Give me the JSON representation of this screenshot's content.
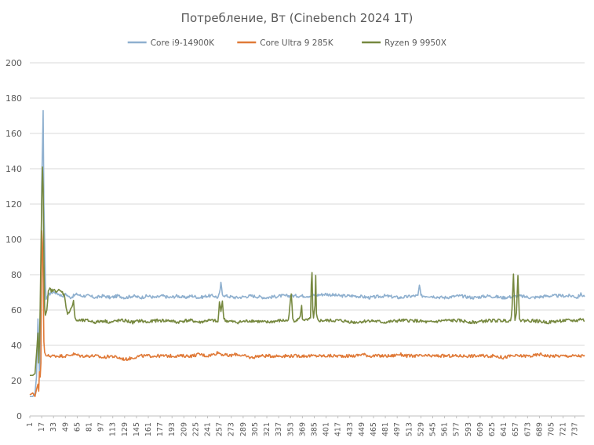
{
  "chart_data": {
    "type": "line",
    "title": "Потребление, Вт (Cinebench 2024 1T)",
    "xlabel": "",
    "ylabel": "",
    "ylim": [
      0,
      200
    ],
    "yticks": [
      0,
      20,
      40,
      60,
      80,
      100,
      120,
      140,
      160,
      180,
      200
    ],
    "xlim": [
      1,
      750
    ],
    "xticks": [
      1,
      17,
      33,
      49,
      65,
      81,
      97,
      113,
      129,
      145,
      161,
      177,
      193,
      209,
      225,
      241,
      257,
      273,
      289,
      305,
      321,
      337,
      353,
      369,
      385,
      401,
      417,
      433,
      449,
      465,
      481,
      497,
      513,
      529,
      545,
      561,
      577,
      593,
      609,
      625,
      641,
      657,
      673,
      689,
      705,
      721,
      737
    ],
    "grid": "horizontal",
    "legend_position": "top",
    "series": [
      {
        "name": "Core i9-14900K",
        "color": "#8fb0cf",
        "points": [
          [
            1,
            11
          ],
          [
            5,
            11
          ],
          [
            8,
            13
          ],
          [
            10,
            22
          ],
          [
            12,
            55
          ],
          [
            13,
            40
          ],
          [
            14,
            22
          ],
          [
            15,
            28
          ],
          [
            16,
            60
          ],
          [
            17,
            130
          ],
          [
            18,
            150
          ],
          [
            19,
            173
          ],
          [
            20,
            120
          ],
          [
            21,
            100
          ],
          [
            22,
            75
          ],
          [
            23,
            66
          ],
          [
            25,
            68
          ],
          [
            30,
            70
          ],
          [
            35,
            70
          ],
          [
            40,
            69
          ],
          [
            45,
            68
          ],
          [
            50,
            69
          ],
          [
            55,
            67
          ],
          [
            60,
            68
          ],
          [
            65,
            69
          ],
          [
            70,
            68
          ],
          [
            80,
            68
          ],
          [
            90,
            67
          ],
          [
            100,
            68
          ],
          [
            110,
            67
          ],
          [
            120,
            68
          ],
          [
            130,
            67
          ],
          [
            140,
            68
          ],
          [
            150,
            67
          ],
          [
            160,
            68
          ],
          [
            170,
            67
          ],
          [
            180,
            68
          ],
          [
            190,
            67
          ],
          [
            200,
            68
          ],
          [
            210,
            67
          ],
          [
            220,
            68
          ],
          [
            230,
            67
          ],
          [
            240,
            68
          ],
          [
            250,
            68
          ],
          [
            255,
            67
          ],
          [
            257,
            69
          ],
          [
            259,
            75
          ],
          [
            261,
            69
          ],
          [
            265,
            68
          ],
          [
            280,
            67
          ],
          [
            300,
            68
          ],
          [
            320,
            67
          ],
          [
            340,
            68
          ],
          [
            360,
            68
          ],
          [
            380,
            68
          ],
          [
            400,
            69
          ],
          [
            420,
            68
          ],
          [
            440,
            68
          ],
          [
            460,
            67
          ],
          [
            480,
            68
          ],
          [
            500,
            67
          ],
          [
            520,
            68
          ],
          [
            525,
            68
          ],
          [
            527,
            74
          ],
          [
            529,
            68
          ],
          [
            540,
            68
          ],
          [
            560,
            67
          ],
          [
            580,
            68
          ],
          [
            600,
            67
          ],
          [
            620,
            68
          ],
          [
            640,
            67
          ],
          [
            660,
            68
          ],
          [
            680,
            67
          ],
          [
            700,
            68
          ],
          [
            720,
            68
          ],
          [
            735,
            68
          ],
          [
            740,
            67
          ],
          [
            745,
            69
          ],
          [
            748,
            68
          ],
          [
            750,
            68
          ]
        ]
      },
      {
        "name": "Core Ultra 9 285K",
        "color": "#e07a38",
        "points": [
          [
            1,
            12
          ],
          [
            5,
            13
          ],
          [
            8,
            11
          ],
          [
            10,
            15
          ],
          [
            12,
            18
          ],
          [
            13,
            14
          ],
          [
            14,
            25
          ],
          [
            15,
            22
          ],
          [
            16,
            30
          ],
          [
            17,
            105
          ],
          [
            18,
            98
          ],
          [
            19,
            78
          ],
          [
            20,
            42
          ],
          [
            21,
            36
          ],
          [
            23,
            34
          ],
          [
            30,
            34
          ],
          [
            40,
            34
          ],
          [
            50,
            34
          ],
          [
            60,
            35
          ],
          [
            70,
            34
          ],
          [
            80,
            34
          ],
          [
            90,
            34
          ],
          [
            100,
            33
          ],
          [
            110,
            34
          ],
          [
            120,
            33
          ],
          [
            130,
            32
          ],
          [
            140,
            33
          ],
          [
            150,
            34
          ],
          [
            160,
            34
          ],
          [
            170,
            34
          ],
          [
            180,
            34
          ],
          [
            190,
            34
          ],
          [
            200,
            34
          ],
          [
            210,
            34
          ],
          [
            220,
            34
          ],
          [
            230,
            35
          ],
          [
            240,
            34
          ],
          [
            250,
            35
          ],
          [
            255,
            36
          ],
          [
            260,
            35
          ],
          [
            270,
            34
          ],
          [
            280,
            35
          ],
          [
            290,
            34
          ],
          [
            300,
            33
          ],
          [
            310,
            34
          ],
          [
            320,
            34
          ],
          [
            330,
            34
          ],
          [
            340,
            34
          ],
          [
            350,
            34
          ],
          [
            360,
            34
          ],
          [
            370,
            34
          ],
          [
            380,
            34
          ],
          [
            390,
            34
          ],
          [
            400,
            34
          ],
          [
            410,
            34
          ],
          [
            420,
            34
          ],
          [
            430,
            34
          ],
          [
            440,
            34
          ],
          [
            450,
            35
          ],
          [
            460,
            34
          ],
          [
            470,
            34
          ],
          [
            480,
            34
          ],
          [
            490,
            34
          ],
          [
            500,
            35
          ],
          [
            510,
            34
          ],
          [
            520,
            34
          ],
          [
            530,
            34
          ],
          [
            540,
            34
          ],
          [
            550,
            34
          ],
          [
            560,
            34
          ],
          [
            570,
            34
          ],
          [
            580,
            34
          ],
          [
            590,
            34
          ],
          [
            600,
            34
          ],
          [
            610,
            34
          ],
          [
            620,
            34
          ],
          [
            630,
            34
          ],
          [
            640,
            33
          ],
          [
            650,
            34
          ],
          [
            660,
            34
          ],
          [
            670,
            34
          ],
          [
            680,
            34
          ],
          [
            690,
            35
          ],
          [
            700,
            34
          ],
          [
            710,
            34
          ],
          [
            720,
            34
          ],
          [
            730,
            34
          ],
          [
            740,
            34
          ],
          [
            750,
            34
          ]
        ]
      },
      {
        "name": "Ryzen 9 9950X",
        "color": "#76883f",
        "points": [
          [
            1,
            23
          ],
          [
            5,
            23
          ],
          [
            8,
            24
          ],
          [
            10,
            35
          ],
          [
            12,
            47
          ],
          [
            13,
            30
          ],
          [
            14,
            40
          ],
          [
            15,
            62
          ],
          [
            16,
            92
          ],
          [
            17,
            120
          ],
          [
            18,
            141
          ],
          [
            19,
            129
          ],
          [
            20,
            90
          ],
          [
            21,
            62
          ],
          [
            22,
            57
          ],
          [
            24,
            60
          ],
          [
            26,
            70
          ],
          [
            28,
            72
          ],
          [
            30,
            71
          ],
          [
            35,
            71
          ],
          [
            40,
            71
          ],
          [
            45,
            70
          ],
          [
            48,
            68
          ],
          [
            50,
            62
          ],
          [
            52,
            57
          ],
          [
            55,
            60
          ],
          [
            58,
            62
          ],
          [
            60,
            65
          ],
          [
            62,
            55
          ],
          [
            65,
            54
          ],
          [
            70,
            54
          ],
          [
            80,
            54
          ],
          [
            90,
            53
          ],
          [
            100,
            54
          ],
          [
            110,
            53
          ],
          [
            120,
            54
          ],
          [
            130,
            54
          ],
          [
            140,
            53
          ],
          [
            150,
            54
          ],
          [
            160,
            53
          ],
          [
            170,
            54
          ],
          [
            180,
            54
          ],
          [
            190,
            54
          ],
          [
            200,
            53
          ],
          [
            210,
            54
          ],
          [
            220,
            54
          ],
          [
            230,
            53
          ],
          [
            240,
            54
          ],
          [
            250,
            54
          ],
          [
            255,
            53
          ],
          [
            257,
            64
          ],
          [
            259,
            60
          ],
          [
            261,
            65
          ],
          [
            263,
            55
          ],
          [
            265,
            54
          ],
          [
            280,
            53
          ],
          [
            300,
            54
          ],
          [
            320,
            53
          ],
          [
            340,
            54
          ],
          [
            350,
            54
          ],
          [
            352,
            62
          ],
          [
            354,
            69
          ],
          [
            356,
            55
          ],
          [
            358,
            54
          ],
          [
            365,
            55
          ],
          [
            367,
            59
          ],
          [
            368,
            62
          ],
          [
            369,
            55
          ],
          [
            375,
            54
          ],
          [
            380,
            55
          ],
          [
            381,
            75
          ],
          [
            382,
            81
          ],
          [
            383,
            60
          ],
          [
            384,
            55
          ],
          [
            386,
            62
          ],
          [
            387,
            79
          ],
          [
            388,
            57
          ],
          [
            390,
            54
          ],
          [
            400,
            54
          ],
          [
            420,
            54
          ],
          [
            440,
            53
          ],
          [
            460,
            54
          ],
          [
            480,
            53
          ],
          [
            500,
            54
          ],
          [
            520,
            54
          ],
          [
            540,
            53
          ],
          [
            560,
            54
          ],
          [
            580,
            54
          ],
          [
            600,
            53
          ],
          [
            620,
            54
          ],
          [
            640,
            54
          ],
          [
            650,
            54
          ],
          [
            652,
            60
          ],
          [
            654,
            81
          ],
          [
            656,
            55
          ],
          [
            658,
            58
          ],
          [
            660,
            79
          ],
          [
            662,
            56
          ],
          [
            664,
            54
          ],
          [
            680,
            54
          ],
          [
            700,
            53
          ],
          [
            720,
            54
          ],
          [
            735,
            54
          ],
          [
            740,
            54
          ],
          [
            745,
            55
          ],
          [
            750,
            54
          ]
        ]
      }
    ]
  }
}
